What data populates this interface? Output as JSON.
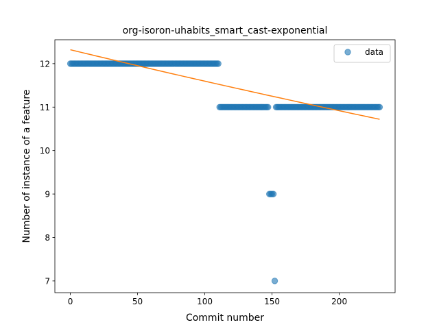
{
  "chart_data": {
    "type": "scatter",
    "title": "org-isoron-uhabits_smart_cast-exponential",
    "xlabel": "Commit number",
    "ylabel": "Number of instance of a feature",
    "xlim": [
      -11.5,
      241.5
    ],
    "ylim": [
      6.73,
      12.55
    ],
    "xticks": [
      0,
      50,
      100,
      150,
      200
    ],
    "yticks": [
      7,
      8,
      9,
      10,
      11,
      12
    ],
    "grid": false,
    "legend": {
      "placement": "top-right",
      "entries": [
        "data"
      ]
    },
    "series": [
      {
        "name": "data",
        "kind": "points",
        "color": "#1f77b4",
        "segments": [
          {
            "x_from": 0,
            "x_to": 110,
            "y": 12
          },
          {
            "x_from": 111,
            "x_to": 147,
            "y": 11
          },
          {
            "x_from": 148,
            "x_to": 151,
            "y": 9
          },
          {
            "x_from": 153,
            "x_to": 230,
            "y": 11
          }
        ],
        "points": [
          {
            "x": 152,
            "y": 7
          }
        ]
      },
      {
        "kind": "line",
        "color": "#ff7f0e",
        "x": [
          0,
          230
        ],
        "y": [
          12.32,
          10.72
        ]
      }
    ]
  }
}
